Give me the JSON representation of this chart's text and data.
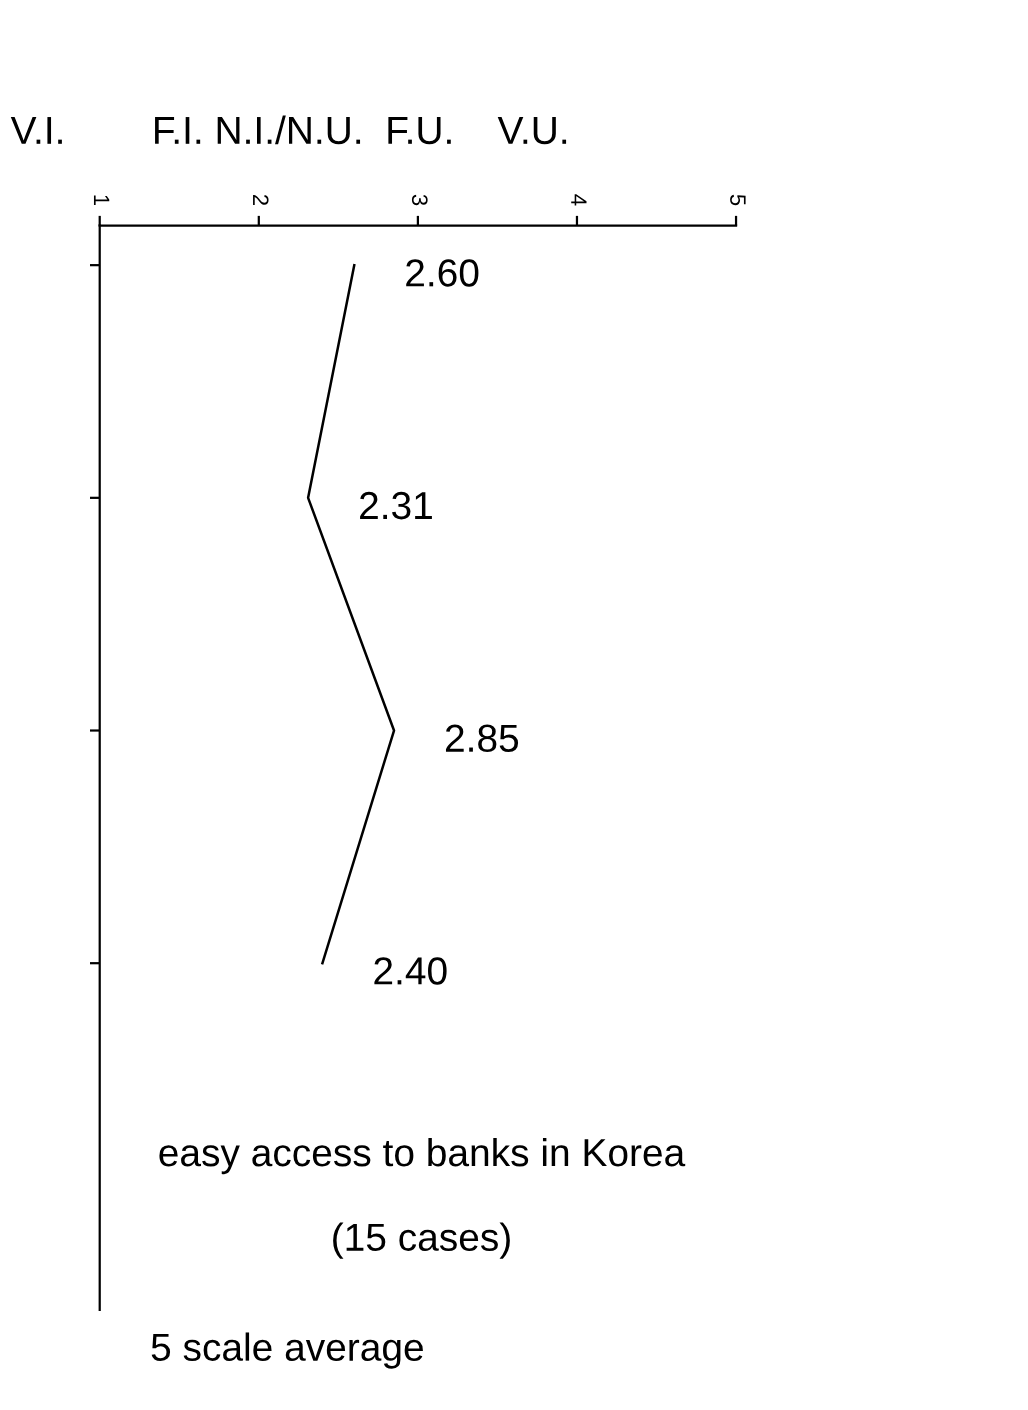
{
  "chart_data": {
    "type": "line",
    "orientation": "horizontal",
    "title": "easy access to banks in Korea",
    "subtitle": "(15 cases)",
    "xlabel": "V.I.        F.I. N.I./N.U.  F.U.    V.U.",
    "categories": [
      null,
      null,
      null,
      null
    ],
    "series": [
      {
        "color": "#000000",
        "values": [
          2.6,
          2.31,
          2.85,
          2.4
        ]
      }
    ],
    "value_labels": [
      "2.60",
      "2.31",
      "2.85",
      "2.40"
    ],
    "xlim": [
      1,
      5
    ],
    "xticks": [
      1,
      2,
      3,
      4,
      5
    ],
    "annotations": [
      "5 scale average"
    ],
    "grid": false,
    "legend": false,
    "marker": "none",
    "line_style": "solid"
  }
}
